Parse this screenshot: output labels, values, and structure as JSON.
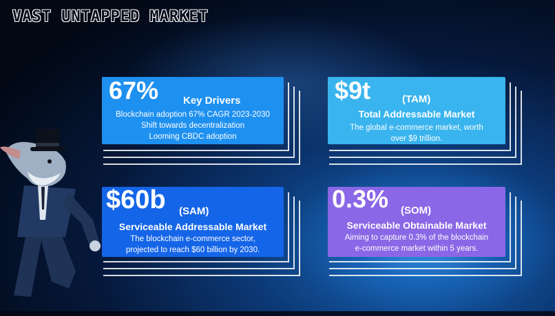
{
  "title": "VAST UNTAPPED MARKET",
  "cards": {
    "drivers": {
      "value": "67%",
      "heading": "Key Drivers",
      "lines": [
        "Blockchain adoption 67% CAGR 2023-2030",
        "Shift towards decentralization",
        "Looming CBDC adoption"
      ]
    },
    "tam": {
      "value": "$9t",
      "tag": "(TAM)",
      "heading": "Total Addressable Market",
      "lines": [
        "The global e-commerce market, worth",
        "over $9 trillion."
      ]
    },
    "sam": {
      "value": "$60b",
      "tag": "(SAM)",
      "heading": "Serviceable Addressable Market",
      "lines": [
        "The blockchain e-commerce sector,",
        "projected to reach $60 billion by 2030."
      ]
    },
    "som": {
      "value": "0.3%",
      "tag": "(SOM)",
      "heading": "Serviceable Obtainable Market",
      "lines": [
        "Aiming to capture 0.3% of the blockchain",
        "e-commerce market within 5 years."
      ]
    }
  },
  "colors": {
    "drivers": "#1e90f0",
    "tam": "#39b4ee",
    "sam": "#1565e8",
    "som": "#8a67e6"
  }
}
